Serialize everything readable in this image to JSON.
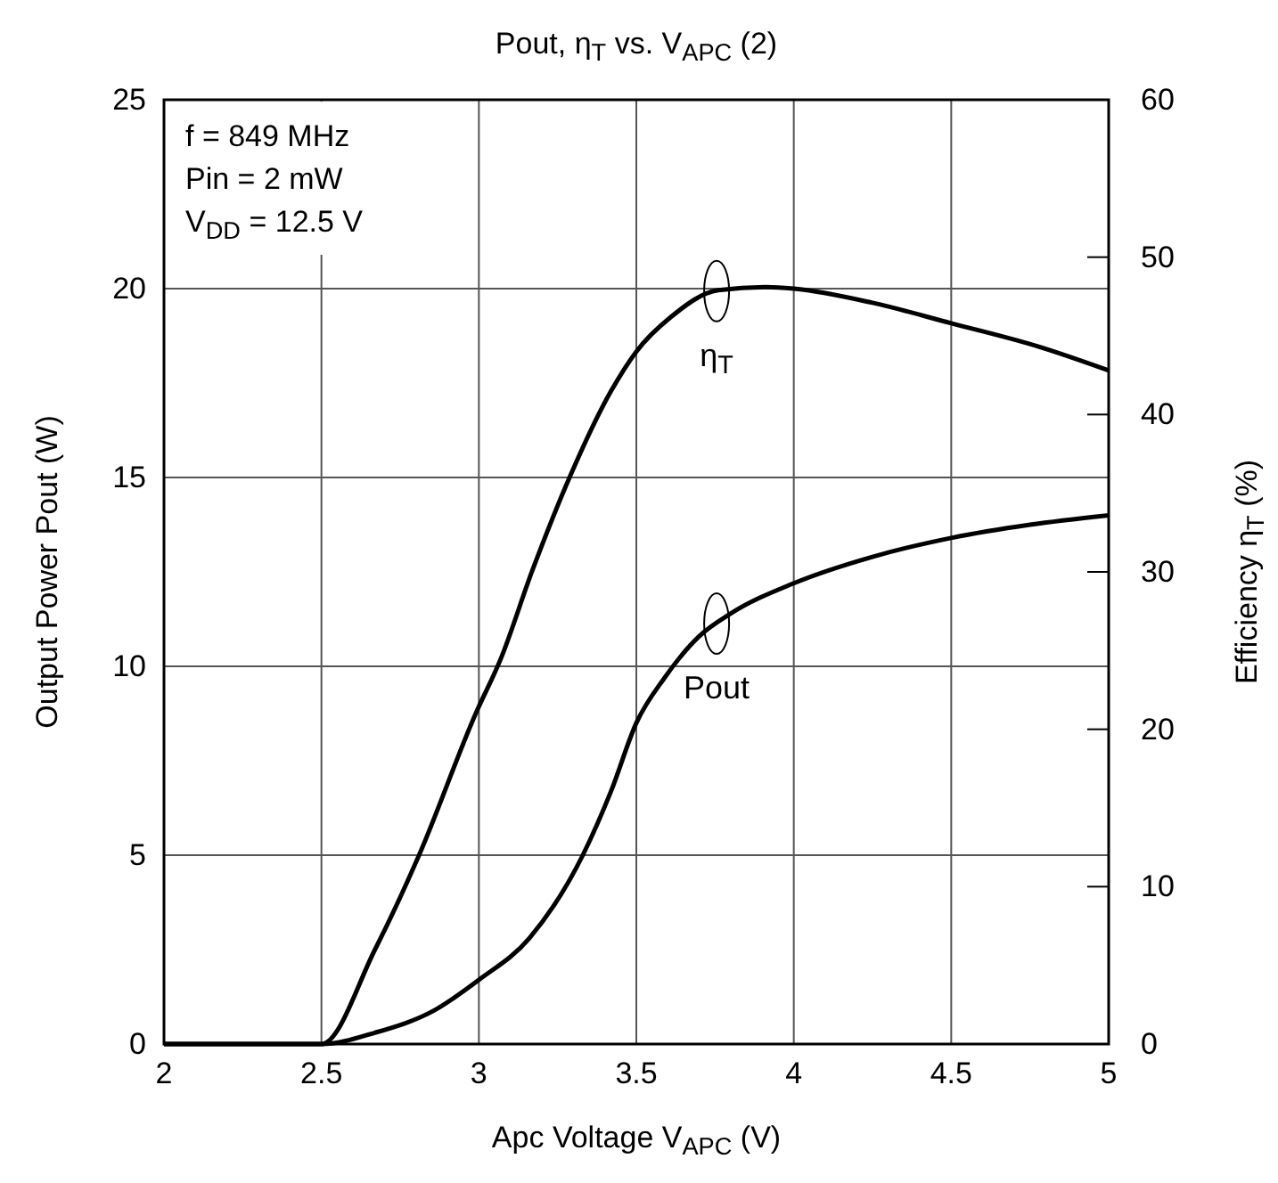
{
  "chart_data": {
    "type": "line",
    "title": "Pout, η$_{T}$ vs. V$_{APC}$ (2)",
    "xlabel": "Apc Voltage  V$_{APC}$  (V)",
    "ylabel": "Output Power  Pout  (W)",
    "y2label": "Efficiency  η$_{T}$  (%)",
    "annotations": [
      "f = 849 MHz",
      "Pin = 2 mW",
      "V$_{DD}$ = 12.5 V"
    ],
    "xlim": [
      2,
      5
    ],
    "xticks": [
      2,
      2.5,
      3,
      3.5,
      4,
      4.5,
      5
    ],
    "ylim": [
      0,
      25
    ],
    "yticks": [
      0,
      5,
      10,
      15,
      20,
      25
    ],
    "y2lim": [
      0,
      60
    ],
    "y2ticks": [
      0,
      10,
      20,
      30,
      40,
      50,
      60
    ],
    "grid": true,
    "marker": "none",
    "line_style": "solid",
    "series": [
      {
        "name": "η$_{T}$",
        "color": "#000000",
        "axis": "y2",
        "x": [
          2,
          2.5,
          2.67,
          2.81,
          2.99,
          3.07,
          3.17,
          3.29,
          3.42,
          3.5,
          3.61,
          3.76,
          3.91,
          4.0,
          4.25,
          4.5,
          4.78,
          5
        ],
        "values": [
          0,
          0,
          6.0,
          12.0,
          21.0,
          24.5,
          30.1,
          36.1,
          41.5,
          44.0,
          46.2,
          47.9,
          48.1,
          48.0,
          47.1,
          45.8,
          44.3,
          42.8
        ]
      },
      {
        "name": "Pout",
        "color": "#000000",
        "axis": "y",
        "x": [
          2,
          2.5,
          2.67,
          2.86,
          3.0,
          3.16,
          3.33,
          3.42,
          3.5,
          3.59,
          3.7,
          3.8,
          4.0,
          4.25,
          4.5,
          4.75,
          5
        ],
        "values": [
          0,
          0,
          0.3,
          0.9,
          1.7,
          2.8,
          5.0,
          6.7,
          8.5,
          9.7,
          10.8,
          11.4,
          12.2,
          12.9,
          13.4,
          13.75,
          14.0
        ]
      }
    ]
  }
}
